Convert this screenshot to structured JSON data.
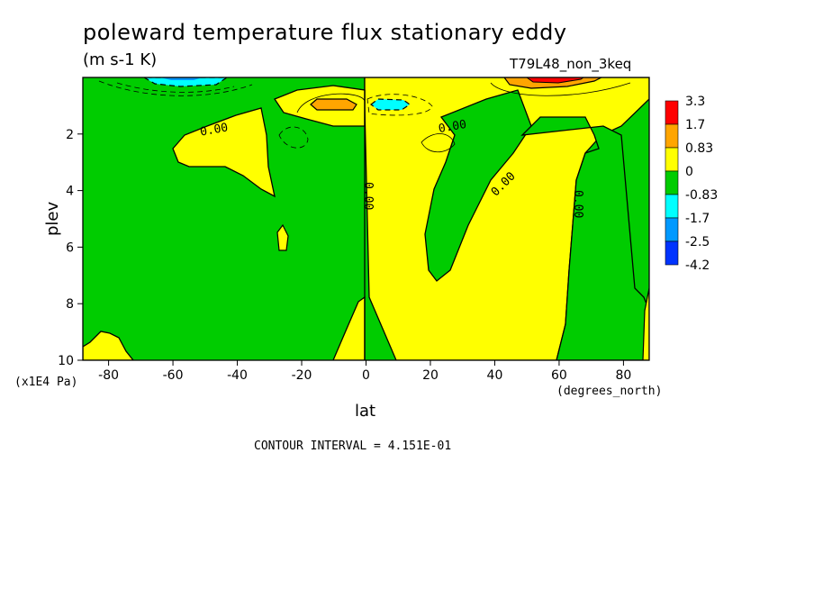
{
  "title": "poleward temperature flux stationary eddy",
  "units": "(m s-1 K)",
  "run_label": "T79L48_non_3keq",
  "contour_interval": "CONTOUR INTERVAL = 4.151E-01",
  "colors": {
    "red": "#ff0000",
    "orange": "#ffa500",
    "yellow": "#ffff00",
    "green": "#00cc00",
    "cyan": "#00ffff",
    "blue": "#0099ff",
    "deep_blue": "#0033ff"
  },
  "chart_data": {
    "type": "heatmap",
    "subtype": "filled contour",
    "title": "poleward temperature flux stationary eddy",
    "units": "(m s-1 K)",
    "xlabel": "lat",
    "xunits": "(degrees_north)",
    "ylabel": "plev",
    "yunits": "(x1E4 Pa)",
    "xlim": [
      -88,
      88
    ],
    "ylim": [
      10,
      0
    ],
    "x_ticks": [
      "-80",
      "-60",
      "-40",
      "-20",
      "0",
      "20",
      "40",
      "60",
      "80"
    ],
    "y_ticks": [
      "2",
      "4",
      "6",
      "8",
      "10"
    ],
    "contour_labels": [
      "0.00",
      "0.00",
      "0.00",
      "0.00",
      "0.00"
    ],
    "colorbar": {
      "labels": [
        "3.3",
        "1.7",
        "0.83",
        "0",
        "-0.83",
        "-1.7",
        "-2.5",
        "-4.2"
      ],
      "colors": [
        "#ff0000",
        "#ffa500",
        "#ffff00",
        "#00cc00",
        "#00ffff",
        "#0099ff",
        "#0033ff"
      ]
    }
  }
}
